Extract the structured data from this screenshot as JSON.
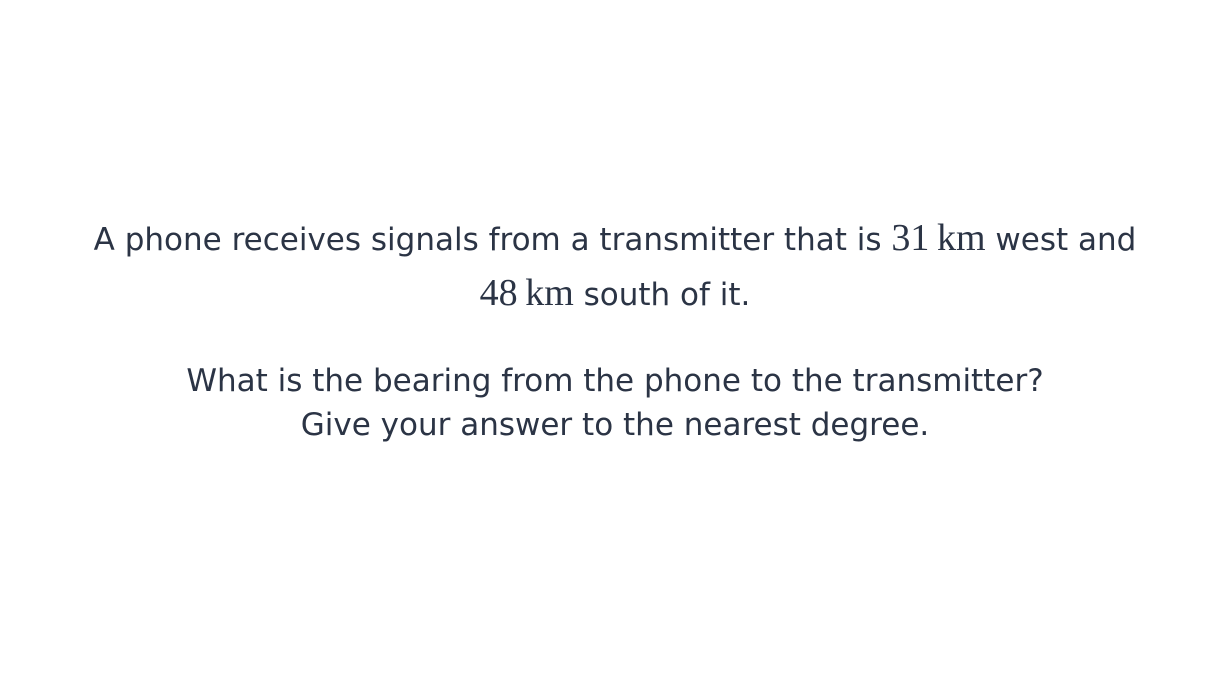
{
  "question": {
    "line1_text": "A phone receives signals from a transmitter that is",
    "west_value": "31",
    "west_unit": "km",
    "line1_suffix": "west and",
    "south_value": "48",
    "south_unit": "km",
    "line2_suffix": "south of it.",
    "prompt": "What is the bearing from the phone to the transmitter?",
    "instruction": "Give your answer to the nearest degree."
  },
  "colors": {
    "text": "#2b3445",
    "background": "#ffffff"
  }
}
